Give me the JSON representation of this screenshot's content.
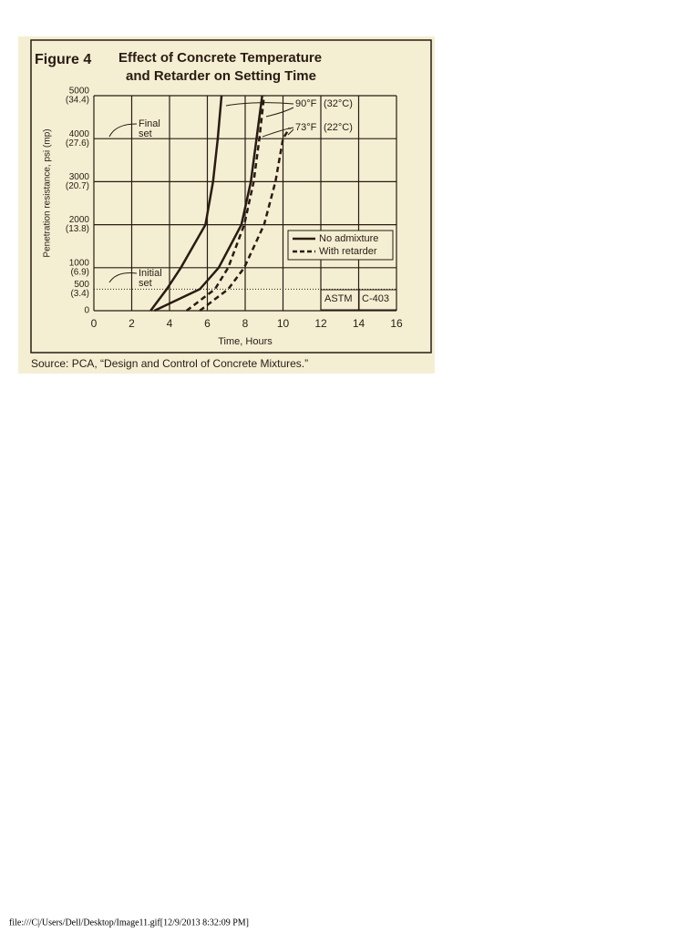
{
  "chart_data": {
    "type": "line",
    "figure_label": "Figure 4",
    "title_lines": [
      "Effect of Concrete Temperature",
      "and Retarder on Setting Time"
    ],
    "xlabel": "Time, Hours",
    "ylabel": "Penetration resistance, psi (mp)",
    "xlim": [
      0,
      16
    ],
    "xticks": [
      0,
      2,
      4,
      6,
      8,
      10,
      12,
      14,
      16
    ],
    "ylim": [
      0,
      5000
    ],
    "yticks": [
      0,
      500,
      1000,
      2000,
      3000,
      4000,
      5000
    ],
    "ytick_sublabels": [
      null,
      "(3.4)",
      "(6.9)",
      "(13.8)",
      "(20.7)",
      "(27.6)",
      "(34.4)"
    ],
    "grid": true,
    "reference_line": 500,
    "color": "#2a1b12",
    "legend_position": "right",
    "legend": [
      {
        "label": "No admixture",
        "dashed": false
      },
      {
        "label": "With retarder",
        "dashed": true
      }
    ],
    "series": [
      {
        "legend": 0,
        "x": [
          3.0,
          3.85,
          4.6,
          5.9,
          6.3,
          6.55,
          6.75
        ],
        "values": [
          0,
          500,
          1000,
          2000,
          3000,
          4000,
          5000
        ]
      },
      {
        "legend": 0,
        "x": [
          3.2,
          5.6,
          6.6,
          7.8,
          8.3,
          8.6,
          8.9
        ],
        "values": [
          0,
          500,
          1000,
          2000,
          3000,
          4000,
          5000
        ]
      },
      {
        "legend": 1,
        "x": [
          4.9,
          6.4,
          7.1,
          7.95,
          8.45,
          8.75,
          9.0
        ],
        "values": [
          0,
          500,
          1000,
          2000,
          3000,
          4000,
          5000
        ]
      },
      {
        "legend": 1,
        "x": [
          5.6,
          7.1,
          7.95,
          9.0,
          9.6,
          10.0,
          10.35
        ],
        "values": [
          0,
          500,
          1000,
          2000,
          3000,
          4000,
          4250
        ]
      }
    ],
    "annotations": {
      "t90f": "90°F",
      "t90c": "(32°C)",
      "t73f": "73°F",
      "t73c": "(22°C)",
      "final": [
        "Final",
        "set"
      ],
      "initial": [
        "Initial",
        "set"
      ],
      "astm": "ASTM",
      "method": "C-403"
    },
    "source": "Source: PCA, “Design and Control of Concrete Mixtures.”"
  },
  "footer": "file:///C|/Users/Dell/Desktop/Image11.gif[12/9/2013 8:32:09 PM]"
}
